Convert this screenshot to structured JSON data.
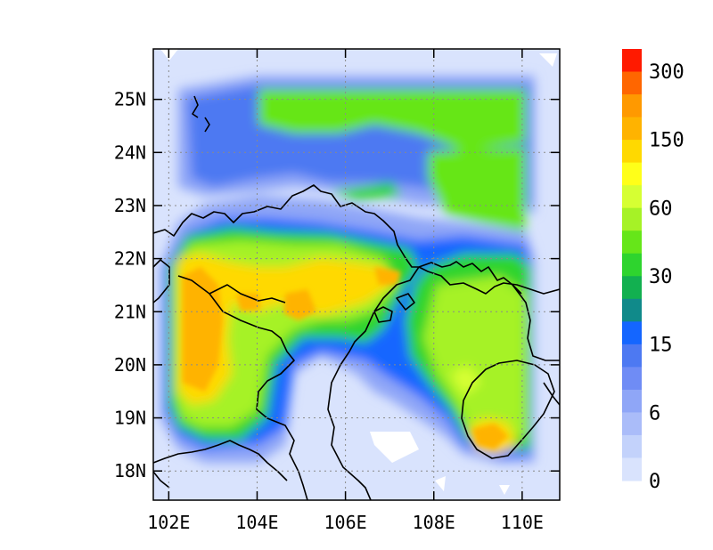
{
  "map": {
    "lat_ticks": [
      "25N",
      "24N",
      "23N",
      "22N",
      "21N",
      "20N",
      "19N",
      "18N"
    ],
    "lon_ticks": [
      "102E",
      "104E",
      "106E",
      "108E",
      "110E"
    ],
    "lat_values": [
      25,
      24,
      23,
      22,
      21,
      20,
      19,
      18
    ],
    "lon_values": [
      102,
      104,
      106,
      108,
      110
    ],
    "extent": {
      "lon": [
        101.65,
        110.85
      ],
      "lat": [
        17.45,
        25.95
      ]
    },
    "grid": true
  },
  "colorbar": {
    "labels": [
      "300",
      "150",
      "60",
      "30",
      "15",
      "6",
      "0"
    ],
    "colors": [
      "#ff1a00",
      "#ff6600",
      "#ff9900",
      "#ffb300",
      "#ffd900",
      "#ffff19",
      "#d6ff33",
      "#a6f226",
      "#66e619",
      "#2ed42e",
      "#12b050",
      "#108a8a",
      "#1466ff",
      "#4d79f2",
      "#6f8cf5",
      "#8fa6f7",
      "#aabcf9",
      "#c3d2fb",
      "#d9e3fd"
    ]
  }
}
